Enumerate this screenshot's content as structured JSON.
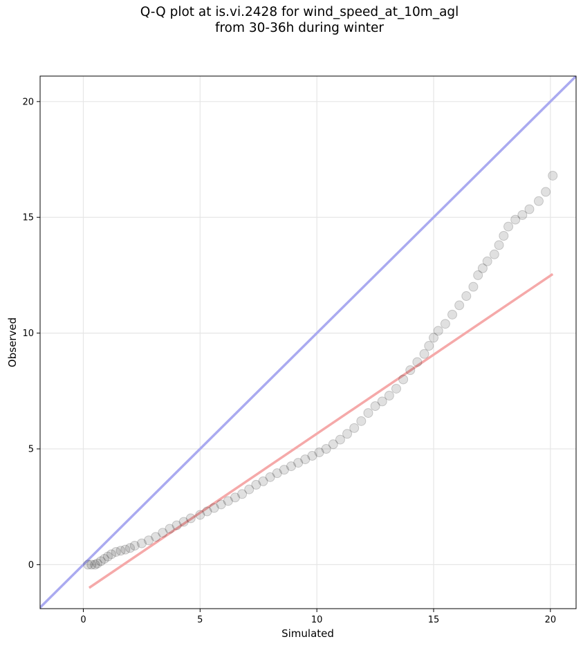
{
  "title_line1": "Q-Q plot at is.vi.2428 for wind_speed_at_10m_agl",
  "title_line2": "from 30-36h during winter",
  "chart_data": {
    "type": "scatter",
    "title": "Q-Q plot at is.vi.2428 for wind_speed_at_10m_agl\nfrom 30-36h during winter",
    "xlabel": "Simulated",
    "ylabel": "Observed",
    "xlim": [
      -1.85,
      21.1
    ],
    "ylim": [
      -1.9,
      21.1
    ],
    "x_ticks": [
      0,
      5,
      10,
      15,
      20
    ],
    "y_ticks": [
      0,
      5,
      10,
      15,
      20
    ],
    "grid": true,
    "colors": {
      "points": "#000000",
      "identity_line": "#aaaaf0",
      "fit_line": "#f5a9a9"
    },
    "identity_line": {
      "x": [
        -1.85,
        21.1
      ],
      "y": [
        -1.85,
        21.1
      ]
    },
    "fit_line": {
      "x": [
        0.25,
        20.1
      ],
      "y": [
        -1.0,
        12.55
      ]
    },
    "quantile_points": [
      [
        0.2,
        0.0
      ],
      [
        0.35,
        0.0
      ],
      [
        0.5,
        0.0
      ],
      [
        0.6,
        0.05
      ],
      [
        0.75,
        0.15
      ],
      [
        0.9,
        0.25
      ],
      [
        1.05,
        0.35
      ],
      [
        1.2,
        0.45
      ],
      [
        1.4,
        0.55
      ],
      [
        1.6,
        0.6
      ],
      [
        1.8,
        0.65
      ],
      [
        2.0,
        0.72
      ],
      [
        2.2,
        0.82
      ],
      [
        2.5,
        0.92
      ],
      [
        2.8,
        1.05
      ],
      [
        3.1,
        1.2
      ],
      [
        3.4,
        1.38
      ],
      [
        3.7,
        1.55
      ],
      [
        4.0,
        1.7
      ],
      [
        4.3,
        1.85
      ],
      [
        4.6,
        2.0
      ],
      [
        5.0,
        2.15
      ],
      [
        5.3,
        2.3
      ],
      [
        5.6,
        2.45
      ],
      [
        5.9,
        2.6
      ],
      [
        6.2,
        2.75
      ],
      [
        6.5,
        2.9
      ],
      [
        6.8,
        3.05
      ],
      [
        7.1,
        3.25
      ],
      [
        7.4,
        3.45
      ],
      [
        7.7,
        3.6
      ],
      [
        8.0,
        3.78
      ],
      [
        8.3,
        3.95
      ],
      [
        8.6,
        4.1
      ],
      [
        8.9,
        4.25
      ],
      [
        9.2,
        4.4
      ],
      [
        9.5,
        4.55
      ],
      [
        9.8,
        4.7
      ],
      [
        10.1,
        4.85
      ],
      [
        10.4,
        5.0
      ],
      [
        10.7,
        5.2
      ],
      [
        11.0,
        5.4
      ],
      [
        11.3,
        5.65
      ],
      [
        11.6,
        5.9
      ],
      [
        11.9,
        6.2
      ],
      [
        12.2,
        6.55
      ],
      [
        12.5,
        6.85
      ],
      [
        12.8,
        7.05
      ],
      [
        13.1,
        7.3
      ],
      [
        13.4,
        7.6
      ],
      [
        13.7,
        8.0
      ],
      [
        14.0,
        8.4
      ],
      [
        14.3,
        8.75
      ],
      [
        14.6,
        9.1
      ],
      [
        14.8,
        9.45
      ],
      [
        15.0,
        9.8
      ],
      [
        15.2,
        10.1
      ],
      [
        15.5,
        10.4
      ],
      [
        15.8,
        10.8
      ],
      [
        16.1,
        11.2
      ],
      [
        16.4,
        11.6
      ],
      [
        16.7,
        12.0
      ],
      [
        16.9,
        12.5
      ],
      [
        17.1,
        12.8
      ],
      [
        17.3,
        13.1
      ],
      [
        17.6,
        13.4
      ],
      [
        17.8,
        13.8
      ],
      [
        18.0,
        14.2
      ],
      [
        18.2,
        14.6
      ],
      [
        18.5,
        14.9
      ],
      [
        18.8,
        15.1
      ],
      [
        19.1,
        15.35
      ],
      [
        19.5,
        15.7
      ],
      [
        19.8,
        16.1
      ],
      [
        20.1,
        16.8
      ]
    ]
  }
}
